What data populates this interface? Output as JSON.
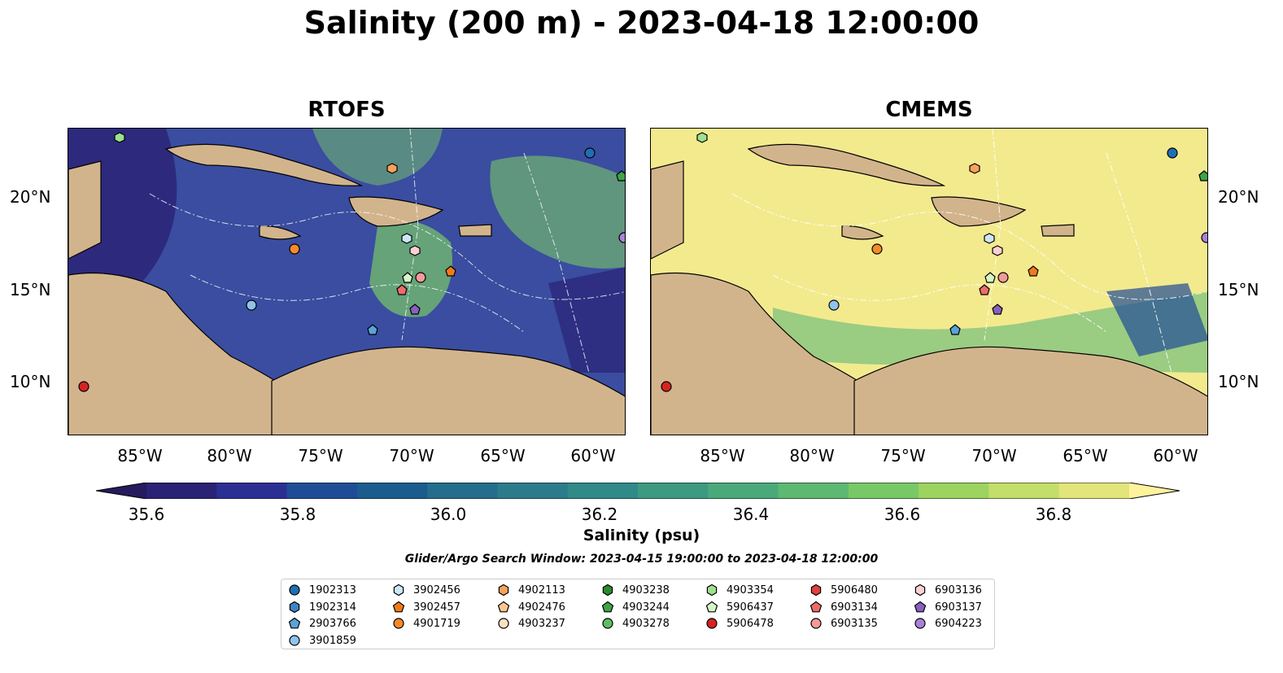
{
  "title": "Salinity (200 m) - 2023-04-18 12:00:00",
  "panels": [
    {
      "id": "rtofs",
      "title": "RTOFS",
      "sea_color": "#3a4da0",
      "accent": "#79c868"
    },
    {
      "id": "cmems",
      "title": "CMEMS",
      "sea_color": "#f3ea8e",
      "accent": "#5fb87a"
    }
  ],
  "lat_ticks": [
    "20°N",
    "15°N",
    "10°N"
  ],
  "lon_ticks": [
    "85°W",
    "80°W",
    "75°W",
    "70°W",
    "65°W",
    "60°W"
  ],
  "colorbar": {
    "label": "Salinity (psu)",
    "ticks": [
      "35.6",
      "35.8",
      "36.0",
      "36.2",
      "36.4",
      "36.6",
      "36.8"
    ],
    "colors": [
      "#2a2275",
      "#2b2f93",
      "#1f4c96",
      "#195c8d",
      "#246d8c",
      "#2c7b8b",
      "#2f8a88",
      "#3c9a81",
      "#4aa97a",
      "#5db872",
      "#79c868",
      "#9cd45f",
      "#c3de6a",
      "#e2e57a"
    ],
    "under_color": "#261b5c",
    "over_color": "#fff29c"
  },
  "search_window": "Glider/Argo Search Window: 2023-04-15 19:00:00 to 2023-04-18 12:00:00",
  "legend": [
    {
      "id": "1902313",
      "marker": "circle",
      "color": "#1f6fb4"
    },
    {
      "id": "1902314",
      "marker": "hexagon",
      "color": "#3b86c6"
    },
    {
      "id": "2903766",
      "marker": "pentagon",
      "color": "#5aa3d8"
    },
    {
      "id": "3901859",
      "marker": "circle",
      "color": "#8fc3ea"
    },
    {
      "id": "3902456",
      "marker": "hexagon",
      "color": "#cde6f6"
    },
    {
      "id": "3902457",
      "marker": "pentagon",
      "color": "#f07a1a"
    },
    {
      "id": "4901719",
      "marker": "circle",
      "color": "#f58a2a"
    },
    {
      "id": "4902113",
      "marker": "hexagon",
      "color": "#f7a25a"
    },
    {
      "id": "4902476",
      "marker": "pentagon",
      "color": "#fbc68f"
    },
    {
      "id": "4903237",
      "marker": "circle",
      "color": "#fde0c0"
    },
    {
      "id": "4903238",
      "marker": "hexagon",
      "color": "#2a8a2e"
    },
    {
      "id": "4903244",
      "marker": "pentagon",
      "color": "#3ea347"
    },
    {
      "id": "4903278",
      "marker": "circle",
      "color": "#5cbf5f"
    },
    {
      "id": "4903354",
      "marker": "hexagon",
      "color": "#9ee08f"
    },
    {
      "id": "5906437",
      "marker": "pentagon",
      "color": "#d6f5c8"
    },
    {
      "id": "5906478",
      "marker": "circle",
      "color": "#d62222"
    },
    {
      "id": "5906480",
      "marker": "hexagon",
      "color": "#e04040"
    },
    {
      "id": "6903134",
      "marker": "pentagon",
      "color": "#ee6b6b"
    },
    {
      "id": "6903135",
      "marker": "circle",
      "color": "#f39a9a"
    },
    {
      "id": "6903136",
      "marker": "hexagon",
      "color": "#fbd0d4"
    },
    {
      "id": "6903137",
      "marker": "pentagon",
      "color": "#8a5fc0"
    },
    {
      "id": "6904223",
      "marker": "circle",
      "color": "#a882d8"
    }
  ]
}
